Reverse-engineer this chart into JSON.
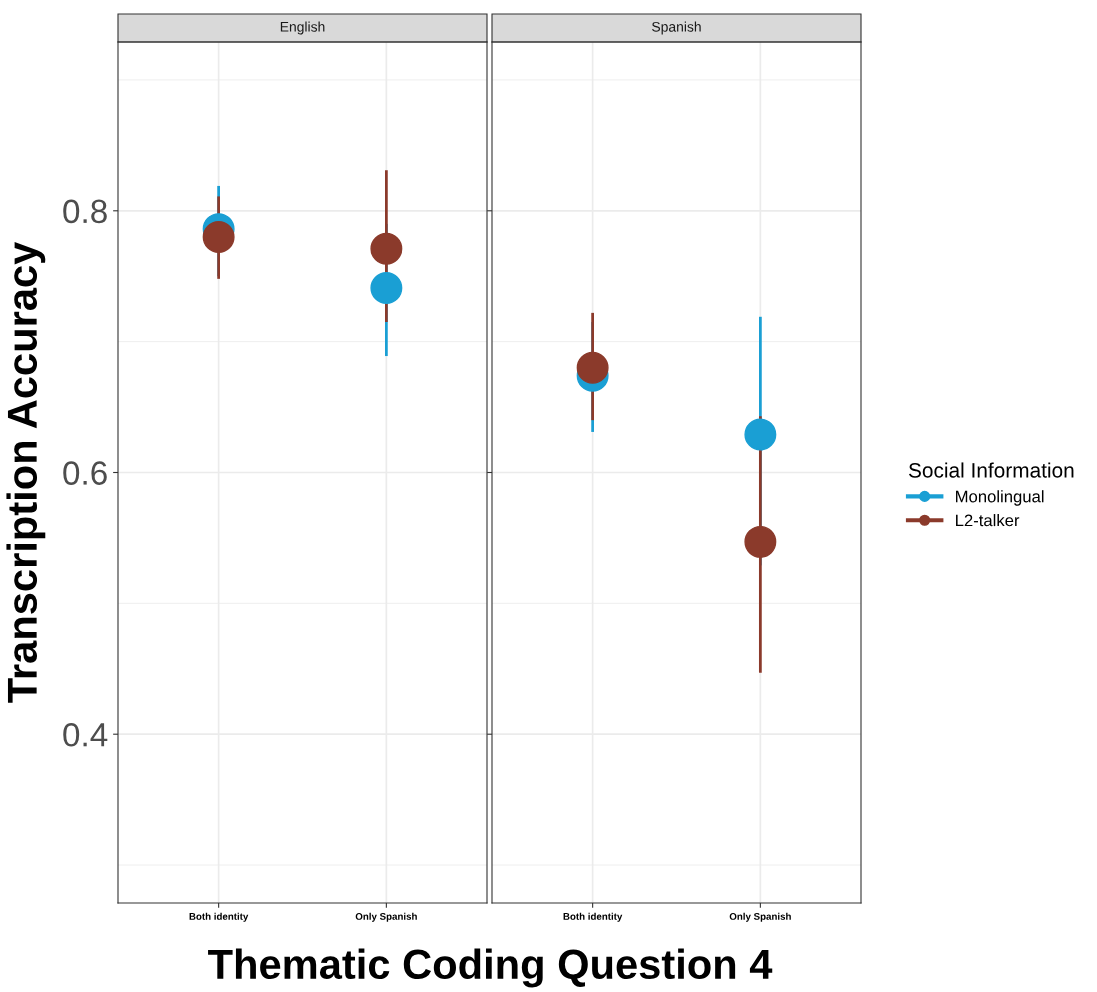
{
  "chart_data": [
    {
      "type": "scatter",
      "title": "English",
      "xlabel": "Thematic Coding Question 4",
      "ylabel": "Transcription Accuracy",
      "categories": [
        "Both identity",
        "Only Spanish"
      ],
      "ylim": [
        0.271,
        0.929
      ],
      "yticks": [
        {
          "value": 0.3,
          "label": null
        },
        0.4,
        {
          "value": 0.5,
          "label": null
        },
        0.6,
        {
          "value": 0.7,
          "label": null
        },
        0.8,
        {
          "value": 0.9,
          "label": null
        }
      ],
      "grid": true,
      "marker": "circle",
      "legend": "right",
      "legend_title": "Social Information",
      "series": [
        {
          "name": "Monolingual",
          "color": "#1a9fd4",
          "values": [
            0.786,
            0.741
          ],
          "errors": [
            [
              0.75,
              0.819
            ],
            [
              0.689,
              0.79
            ]
          ]
        },
        {
          "name": "L2-talker",
          "color": "#8b3a2b",
          "values": [
            0.78,
            0.771
          ],
          "errors": [
            [
              0.748,
              0.811
            ],
            [
              0.715,
              0.831
            ]
          ]
        }
      ]
    },
    {
      "type": "scatter",
      "title": "Spanish",
      "categories": [
        "Both identity",
        "Only Spanish"
      ],
      "ylim": [
        0.271,
        0.929
      ],
      "yticks": [
        {
          "value": 0.3,
          "label": null
        },
        0.4,
        {
          "value": 0.5,
          "label": null
        },
        0.6,
        {
          "value": 0.7,
          "label": null
        },
        0.8,
        {
          "value": 0.9,
          "label": null
        }
      ],
      "grid": true,
      "marker": "circle",
      "tick_labels": "x",
      "legend": "right",
      "series": [
        {
          "name": "Monolingual",
          "color": "#1a9fd4",
          "values": [
            0.674,
            0.629
          ],
          "errors": [
            [
              0.631,
              0.715
            ],
            [
              0.529,
              0.719
            ]
          ]
        },
        {
          "name": "L2-talker",
          "color": "#8b3a2b",
          "values": [
            0.68,
            0.547
          ],
          "errors": [
            [
              0.64,
              0.722
            ],
            [
              0.447,
              0.643
            ]
          ]
        }
      ]
    }
  ]
}
